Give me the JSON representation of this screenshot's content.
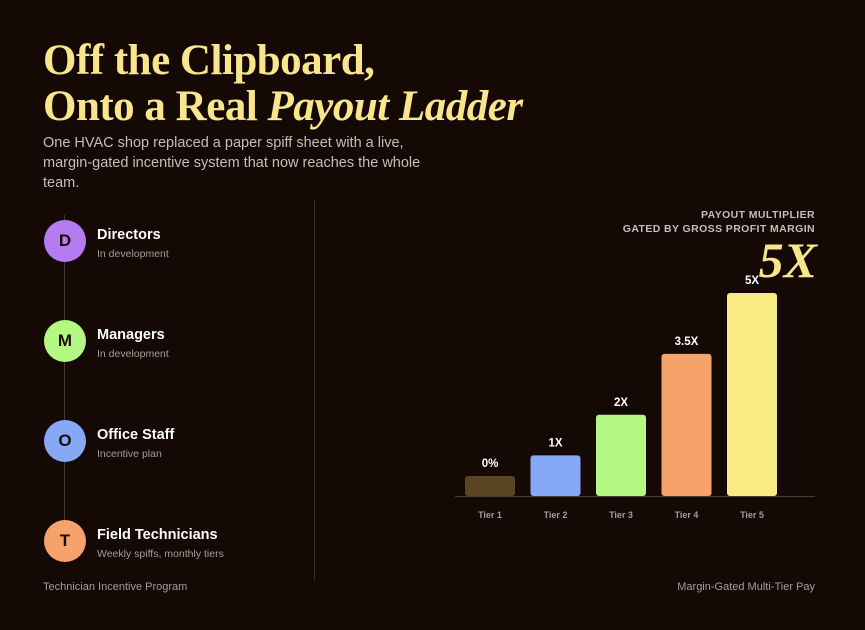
{
  "header": {
    "title_line1": "Off the Clipboard,",
    "title_line2_plain": "Onto a Real ",
    "title_line2_italic": "Payout Ladder",
    "subtitle": "One HVAC shop replaced a paper spiff sheet with a live, margin-gated incentive system that now reaches the whole team."
  },
  "ladder": [
    {
      "initial": "D",
      "title": "Directors",
      "desc": "In development",
      "color": "#b57cf2"
    },
    {
      "initial": "M",
      "title": "Managers",
      "desc": "In development",
      "color": "#b4f783"
    },
    {
      "initial": "O",
      "title": "Office Staff",
      "desc": "Incentive plan",
      "color": "#86a8f7"
    },
    {
      "initial": "T",
      "title": "Field Technicians",
      "desc": "Weekly spiffs, monthly tiers",
      "color": "#f7a26a"
    }
  ],
  "chart_label": {
    "line1": "PAYOUT MULTIPLIER",
    "line2": "GATED BY GROSS PROFIT MARGIN",
    "big_value": "5X"
  },
  "chart_data": {
    "type": "bar",
    "categories": [
      "Tier 1",
      "Tier 2",
      "Tier 3",
      "Tier 4",
      "Tier 5"
    ],
    "values": [
      0,
      1,
      2,
      3.5,
      5
    ],
    "labels": [
      "0%",
      "1X",
      "2X",
      "3.5X",
      "5X"
    ],
    "colors": [
      "#5a4424",
      "#86a8f7",
      "#b4f783",
      "#f7a26a",
      "#f8eb84"
    ],
    "ylim": [
      0,
      5
    ],
    "grid": false
  },
  "footer": {
    "left": "Technician Incentive Program",
    "right": "Margin-Gated Multi-Tier Pay"
  }
}
